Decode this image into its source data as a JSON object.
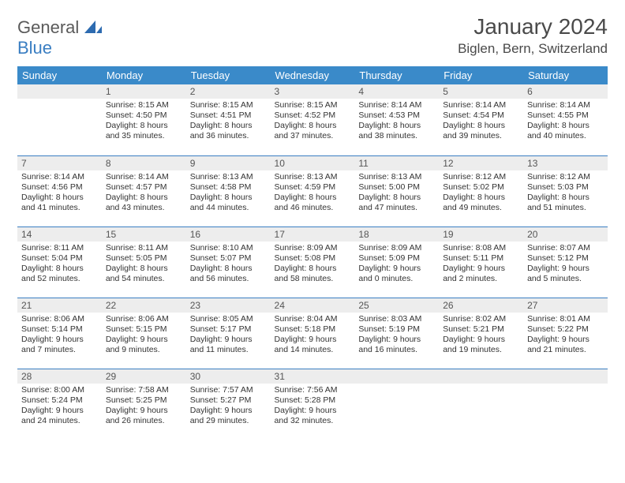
{
  "logo": {
    "word1": "General",
    "word2": "Blue"
  },
  "title": "January 2024",
  "location": "Biglen, Bern, Switzerland",
  "colors": {
    "header_bg": "#3a8ac9",
    "header_text": "#ffffff",
    "row_divider": "#3a7ec2",
    "daynum_bg": "#ededed",
    "daynum_text": "#555555",
    "body_text": "#333333",
    "page_bg": "#ffffff",
    "logo_gray": "#5a5a5a",
    "logo_blue": "#3a7ec2"
  },
  "typography": {
    "title_fontsize": 28,
    "location_fontsize": 17,
    "weekday_fontsize": 13,
    "daynum_fontsize": 12,
    "cell_fontsize": 10.5
  },
  "weekdays": [
    "Sunday",
    "Monday",
    "Tuesday",
    "Wednesday",
    "Thursday",
    "Friday",
    "Saturday"
  ],
  "weeks": [
    [
      {
        "n": "",
        "sr": "",
        "ss": "",
        "dl": ""
      },
      {
        "n": "1",
        "sr": "Sunrise: 8:15 AM",
        "ss": "Sunset: 4:50 PM",
        "dl": "Daylight: 8 hours and 35 minutes."
      },
      {
        "n": "2",
        "sr": "Sunrise: 8:15 AM",
        "ss": "Sunset: 4:51 PM",
        "dl": "Daylight: 8 hours and 36 minutes."
      },
      {
        "n": "3",
        "sr": "Sunrise: 8:15 AM",
        "ss": "Sunset: 4:52 PM",
        "dl": "Daylight: 8 hours and 37 minutes."
      },
      {
        "n": "4",
        "sr": "Sunrise: 8:14 AM",
        "ss": "Sunset: 4:53 PM",
        "dl": "Daylight: 8 hours and 38 minutes."
      },
      {
        "n": "5",
        "sr": "Sunrise: 8:14 AM",
        "ss": "Sunset: 4:54 PM",
        "dl": "Daylight: 8 hours and 39 minutes."
      },
      {
        "n": "6",
        "sr": "Sunrise: 8:14 AM",
        "ss": "Sunset: 4:55 PM",
        "dl": "Daylight: 8 hours and 40 minutes."
      }
    ],
    [
      {
        "n": "7",
        "sr": "Sunrise: 8:14 AM",
        "ss": "Sunset: 4:56 PM",
        "dl": "Daylight: 8 hours and 41 minutes."
      },
      {
        "n": "8",
        "sr": "Sunrise: 8:14 AM",
        "ss": "Sunset: 4:57 PM",
        "dl": "Daylight: 8 hours and 43 minutes."
      },
      {
        "n": "9",
        "sr": "Sunrise: 8:13 AM",
        "ss": "Sunset: 4:58 PM",
        "dl": "Daylight: 8 hours and 44 minutes."
      },
      {
        "n": "10",
        "sr": "Sunrise: 8:13 AM",
        "ss": "Sunset: 4:59 PM",
        "dl": "Daylight: 8 hours and 46 minutes."
      },
      {
        "n": "11",
        "sr": "Sunrise: 8:13 AM",
        "ss": "Sunset: 5:00 PM",
        "dl": "Daylight: 8 hours and 47 minutes."
      },
      {
        "n": "12",
        "sr": "Sunrise: 8:12 AM",
        "ss": "Sunset: 5:02 PM",
        "dl": "Daylight: 8 hours and 49 minutes."
      },
      {
        "n": "13",
        "sr": "Sunrise: 8:12 AM",
        "ss": "Sunset: 5:03 PM",
        "dl": "Daylight: 8 hours and 51 minutes."
      }
    ],
    [
      {
        "n": "14",
        "sr": "Sunrise: 8:11 AM",
        "ss": "Sunset: 5:04 PM",
        "dl": "Daylight: 8 hours and 52 minutes."
      },
      {
        "n": "15",
        "sr": "Sunrise: 8:11 AM",
        "ss": "Sunset: 5:05 PM",
        "dl": "Daylight: 8 hours and 54 minutes."
      },
      {
        "n": "16",
        "sr": "Sunrise: 8:10 AM",
        "ss": "Sunset: 5:07 PM",
        "dl": "Daylight: 8 hours and 56 minutes."
      },
      {
        "n": "17",
        "sr": "Sunrise: 8:09 AM",
        "ss": "Sunset: 5:08 PM",
        "dl": "Daylight: 8 hours and 58 minutes."
      },
      {
        "n": "18",
        "sr": "Sunrise: 8:09 AM",
        "ss": "Sunset: 5:09 PM",
        "dl": "Daylight: 9 hours and 0 minutes."
      },
      {
        "n": "19",
        "sr": "Sunrise: 8:08 AM",
        "ss": "Sunset: 5:11 PM",
        "dl": "Daylight: 9 hours and 2 minutes."
      },
      {
        "n": "20",
        "sr": "Sunrise: 8:07 AM",
        "ss": "Sunset: 5:12 PM",
        "dl": "Daylight: 9 hours and 5 minutes."
      }
    ],
    [
      {
        "n": "21",
        "sr": "Sunrise: 8:06 AM",
        "ss": "Sunset: 5:14 PM",
        "dl": "Daylight: 9 hours and 7 minutes."
      },
      {
        "n": "22",
        "sr": "Sunrise: 8:06 AM",
        "ss": "Sunset: 5:15 PM",
        "dl": "Daylight: 9 hours and 9 minutes."
      },
      {
        "n": "23",
        "sr": "Sunrise: 8:05 AM",
        "ss": "Sunset: 5:17 PM",
        "dl": "Daylight: 9 hours and 11 minutes."
      },
      {
        "n": "24",
        "sr": "Sunrise: 8:04 AM",
        "ss": "Sunset: 5:18 PM",
        "dl": "Daylight: 9 hours and 14 minutes."
      },
      {
        "n": "25",
        "sr": "Sunrise: 8:03 AM",
        "ss": "Sunset: 5:19 PM",
        "dl": "Daylight: 9 hours and 16 minutes."
      },
      {
        "n": "26",
        "sr": "Sunrise: 8:02 AM",
        "ss": "Sunset: 5:21 PM",
        "dl": "Daylight: 9 hours and 19 minutes."
      },
      {
        "n": "27",
        "sr": "Sunrise: 8:01 AM",
        "ss": "Sunset: 5:22 PM",
        "dl": "Daylight: 9 hours and 21 minutes."
      }
    ],
    [
      {
        "n": "28",
        "sr": "Sunrise: 8:00 AM",
        "ss": "Sunset: 5:24 PM",
        "dl": "Daylight: 9 hours and 24 minutes."
      },
      {
        "n": "29",
        "sr": "Sunrise: 7:58 AM",
        "ss": "Sunset: 5:25 PM",
        "dl": "Daylight: 9 hours and 26 minutes."
      },
      {
        "n": "30",
        "sr": "Sunrise: 7:57 AM",
        "ss": "Sunset: 5:27 PM",
        "dl": "Daylight: 9 hours and 29 minutes."
      },
      {
        "n": "31",
        "sr": "Sunrise: 7:56 AM",
        "ss": "Sunset: 5:28 PM",
        "dl": "Daylight: 9 hours and 32 minutes."
      },
      {
        "n": "",
        "sr": "",
        "ss": "",
        "dl": ""
      },
      {
        "n": "",
        "sr": "",
        "ss": "",
        "dl": ""
      },
      {
        "n": "",
        "sr": "",
        "ss": "",
        "dl": ""
      }
    ]
  ]
}
